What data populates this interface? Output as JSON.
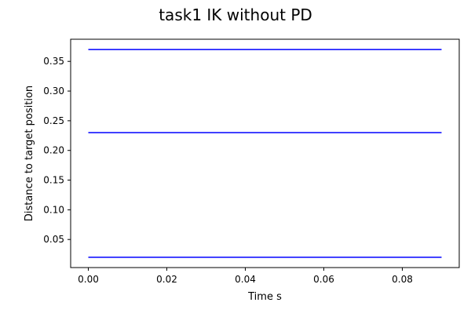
{
  "chart_data": {
    "type": "line",
    "title": "task1 IK without PD",
    "xlabel": "Time s",
    "ylabel": "Distance to target position",
    "xlim": [
      -0.0045,
      0.0945
    ],
    "ylim": [
      0.0027,
      0.3873
    ],
    "xticks": [
      0.0,
      0.02,
      0.04,
      0.06,
      0.08
    ],
    "xtick_labels": [
      "0.00",
      "0.02",
      "0.04",
      "0.06",
      "0.08"
    ],
    "yticks": [
      0.05,
      0.1,
      0.15,
      0.2,
      0.25,
      0.3,
      0.35
    ],
    "ytick_labels": [
      "0.05",
      "0.10",
      "0.15",
      "0.20",
      "0.25",
      "0.30",
      "0.35"
    ],
    "grid": false,
    "series": [
      {
        "color": "#0000ff",
        "x": [
          0.0,
          0.09
        ],
        "y": [
          0.37,
          0.37
        ]
      },
      {
        "color": "#0000ff",
        "x": [
          0.0,
          0.09
        ],
        "y": [
          0.23,
          0.23
        ]
      },
      {
        "color": "#0000ff",
        "x": [
          0.0,
          0.09
        ],
        "y": [
          0.02,
          0.02
        ]
      }
    ]
  }
}
